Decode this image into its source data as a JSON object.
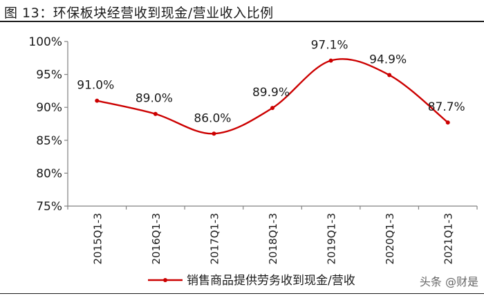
{
  "figure_title": "图 13：环保板块经营收到现金/营业收入比例",
  "watermark": "头条 @财是",
  "colors": {
    "series": "#cc0000",
    "axis": "#808080",
    "text": "#1a1a1a"
  },
  "chart_data": {
    "type": "line",
    "title": "",
    "xlabel": "",
    "ylabel": "",
    "categories": [
      "2015Q1-3",
      "2016Q1-3",
      "2017Q1-3",
      "2018Q1-3",
      "2019Q1-3",
      "2020Q1-3",
      "2021Q1-3"
    ],
    "yticks": [
      "75%",
      "80%",
      "85%",
      "90%",
      "95%",
      "100%"
    ],
    "ylim": [
      75,
      100
    ],
    "grid": false,
    "legend_position": "bottom",
    "series": [
      {
        "name": "销售商品提供劳务收到现金/营收",
        "values": [
          91.0,
          89.0,
          86.0,
          89.9,
          97.1,
          94.9,
          87.7
        ],
        "labels": [
          "91.0%",
          "89.0%",
          "86.0%",
          "89.9%",
          "97.1%",
          "94.9%",
          "87.7%"
        ]
      }
    ]
  }
}
